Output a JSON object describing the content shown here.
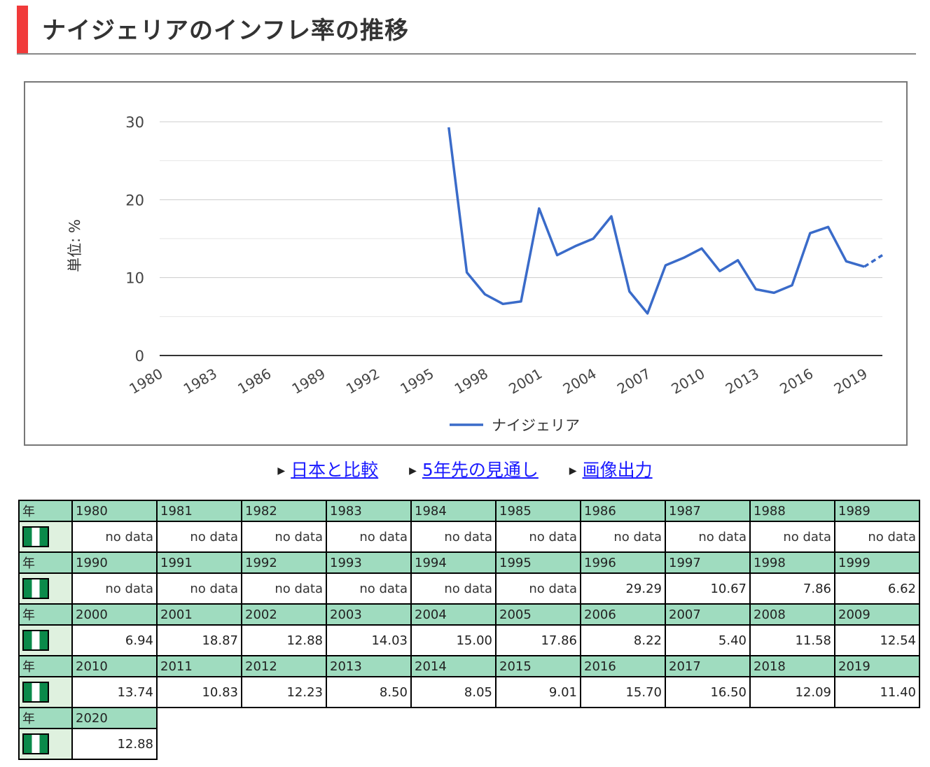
{
  "page": {
    "title": "ナイジェリアのインフレ率の推移"
  },
  "links": [
    {
      "label": "日本と比較"
    },
    {
      "label": "5年先の見通し"
    },
    {
      "label": "画像出力"
    }
  ],
  "table": {
    "year_header": "年",
    "no_data": "no data",
    "flag_icon": "nigeria-flag-icon",
    "flag_colors": [
      "#0a8a4a",
      "#ffffff",
      "#0a8a4a"
    ],
    "rows": [
      {
        "years": [
          "1980",
          "1981",
          "1982",
          "1983",
          "1984",
          "1985",
          "1986",
          "1987",
          "1988",
          "1989"
        ],
        "values": [
          null,
          null,
          null,
          null,
          null,
          null,
          null,
          null,
          null,
          null
        ]
      },
      {
        "years": [
          "1990",
          "1991",
          "1992",
          "1993",
          "1994",
          "1995",
          "1996",
          "1997",
          "1998",
          "1999"
        ],
        "values": [
          null,
          null,
          null,
          null,
          null,
          null,
          "29.29",
          "10.67",
          "7.86",
          "6.62"
        ]
      },
      {
        "years": [
          "2000",
          "2001",
          "2002",
          "2003",
          "2004",
          "2005",
          "2006",
          "2007",
          "2008",
          "2009"
        ],
        "values": [
          "6.94",
          "18.87",
          "12.88",
          "14.03",
          "15.00",
          "17.86",
          "8.22",
          "5.40",
          "11.58",
          "12.54"
        ]
      },
      {
        "years": [
          "2010",
          "2011",
          "2012",
          "2013",
          "2014",
          "2015",
          "2016",
          "2017",
          "2018",
          "2019"
        ],
        "values": [
          "13.74",
          "10.83",
          "12.23",
          "8.50",
          "8.05",
          "9.01",
          "15.70",
          "16.50",
          "12.09",
          "11.40"
        ]
      },
      {
        "years": [
          "2020"
        ],
        "values": [
          "12.88"
        ]
      }
    ]
  },
  "chart_data": {
    "type": "line",
    "title": "",
    "ylabel": "単位: %",
    "xlabel": "",
    "ylim": [
      0,
      30
    ],
    "yticks": [
      0,
      10,
      20,
      30
    ],
    "xlim": [
      1980,
      2020
    ],
    "xticks": [
      "1980",
      "1983",
      "1986",
      "1989",
      "1992",
      "1995",
      "1998",
      "2001",
      "2004",
      "2007",
      "2010",
      "2013",
      "2016",
      "2019"
    ],
    "grid": true,
    "legend_position": "bottom",
    "line_color": "#3a6bc9",
    "series": [
      {
        "name": "ナイジェリア",
        "x": [
          1996,
          1997,
          1998,
          1999,
          2000,
          2001,
          2002,
          2003,
          2004,
          2005,
          2006,
          2007,
          2008,
          2009,
          2010,
          2011,
          2012,
          2013,
          2014,
          2015,
          2016,
          2017,
          2018,
          2019,
          2020
        ],
        "values": [
          29.29,
          10.67,
          7.86,
          6.62,
          6.94,
          18.87,
          12.88,
          14.03,
          15.0,
          17.86,
          8.22,
          5.4,
          11.58,
          12.54,
          13.74,
          10.83,
          12.23,
          8.5,
          8.05,
          9.01,
          15.7,
          16.5,
          12.09,
          11.4,
          12.88
        ],
        "estimated_from": 2019
      }
    ]
  }
}
